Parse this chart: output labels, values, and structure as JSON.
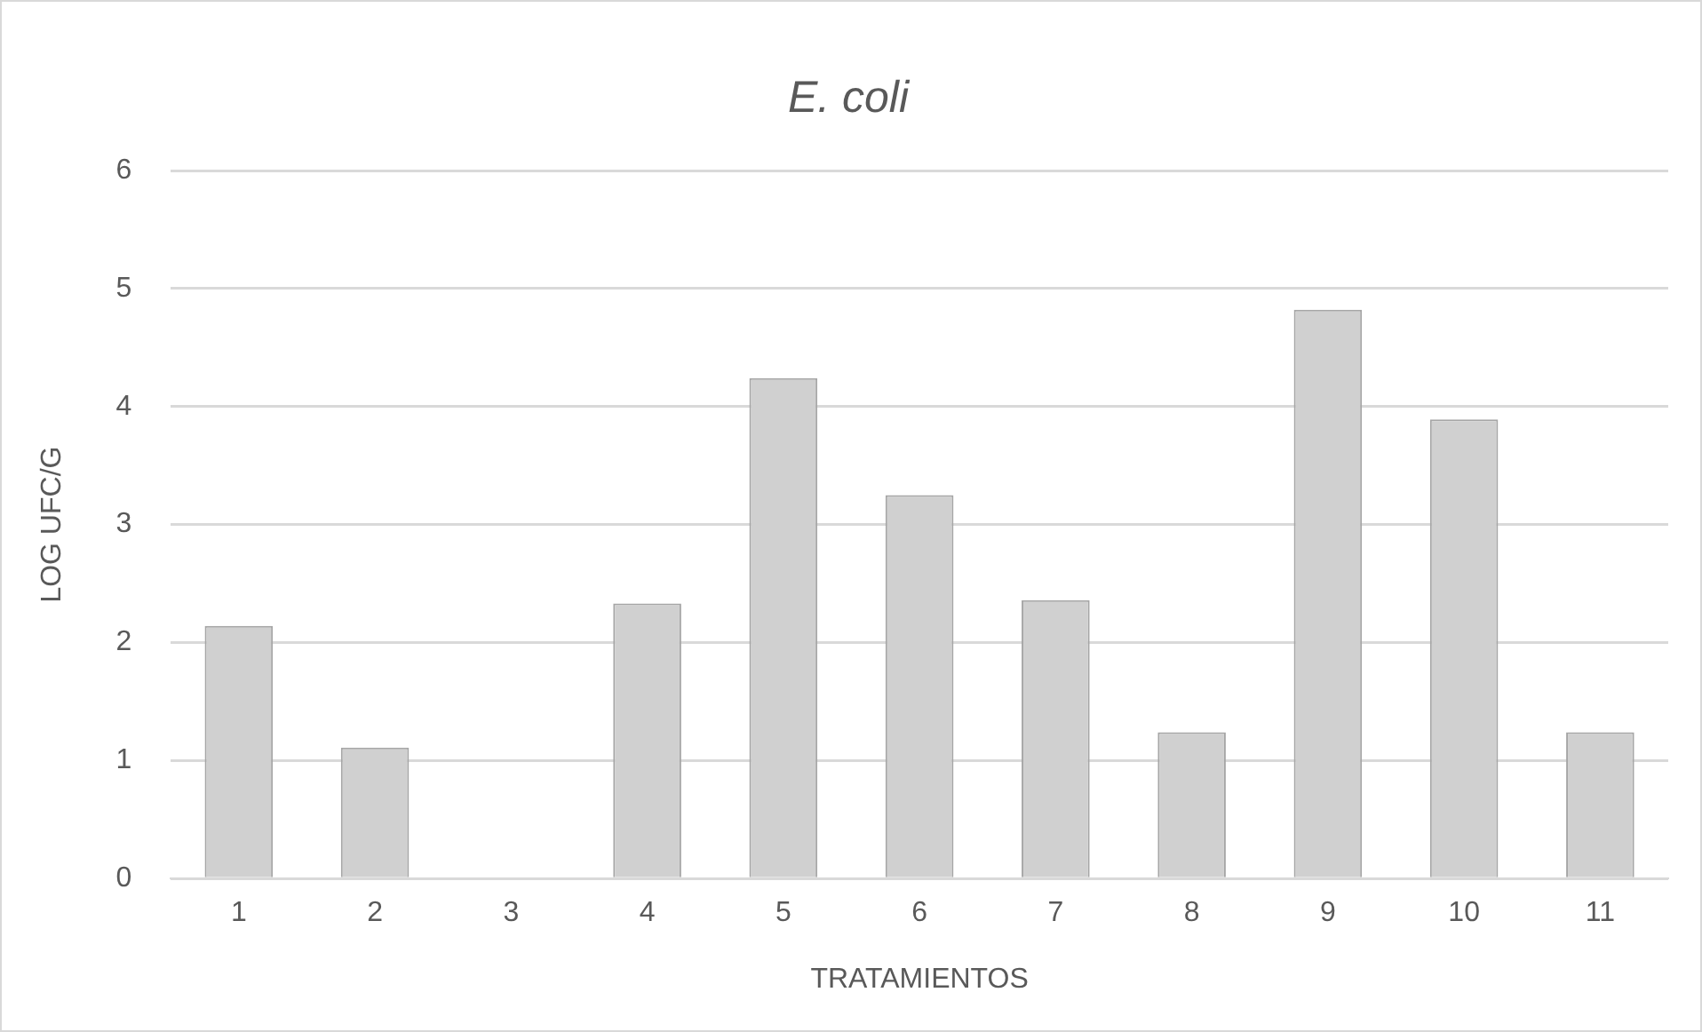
{
  "chart_data": {
    "type": "bar",
    "title": "E. coli",
    "xlabel": "TRATAMIENTOS",
    "ylabel": "LOG UFC/G",
    "categories": [
      "1",
      "2",
      "3",
      "4",
      "5",
      "6",
      "7",
      "8",
      "9",
      "10",
      "11"
    ],
    "series": [
      {
        "color": "#d0d0d0",
        "values": [
          2.14,
          1.11,
          0,
          2.33,
          4.24,
          3.25,
          2.36,
          1.24,
          4.82,
          3.89,
          1.24
        ]
      }
    ],
    "ylim": [
      0,
      6
    ],
    "yticks": [
      0,
      1,
      2,
      3,
      4,
      5,
      6
    ],
    "grid": "y",
    "legend": false
  }
}
